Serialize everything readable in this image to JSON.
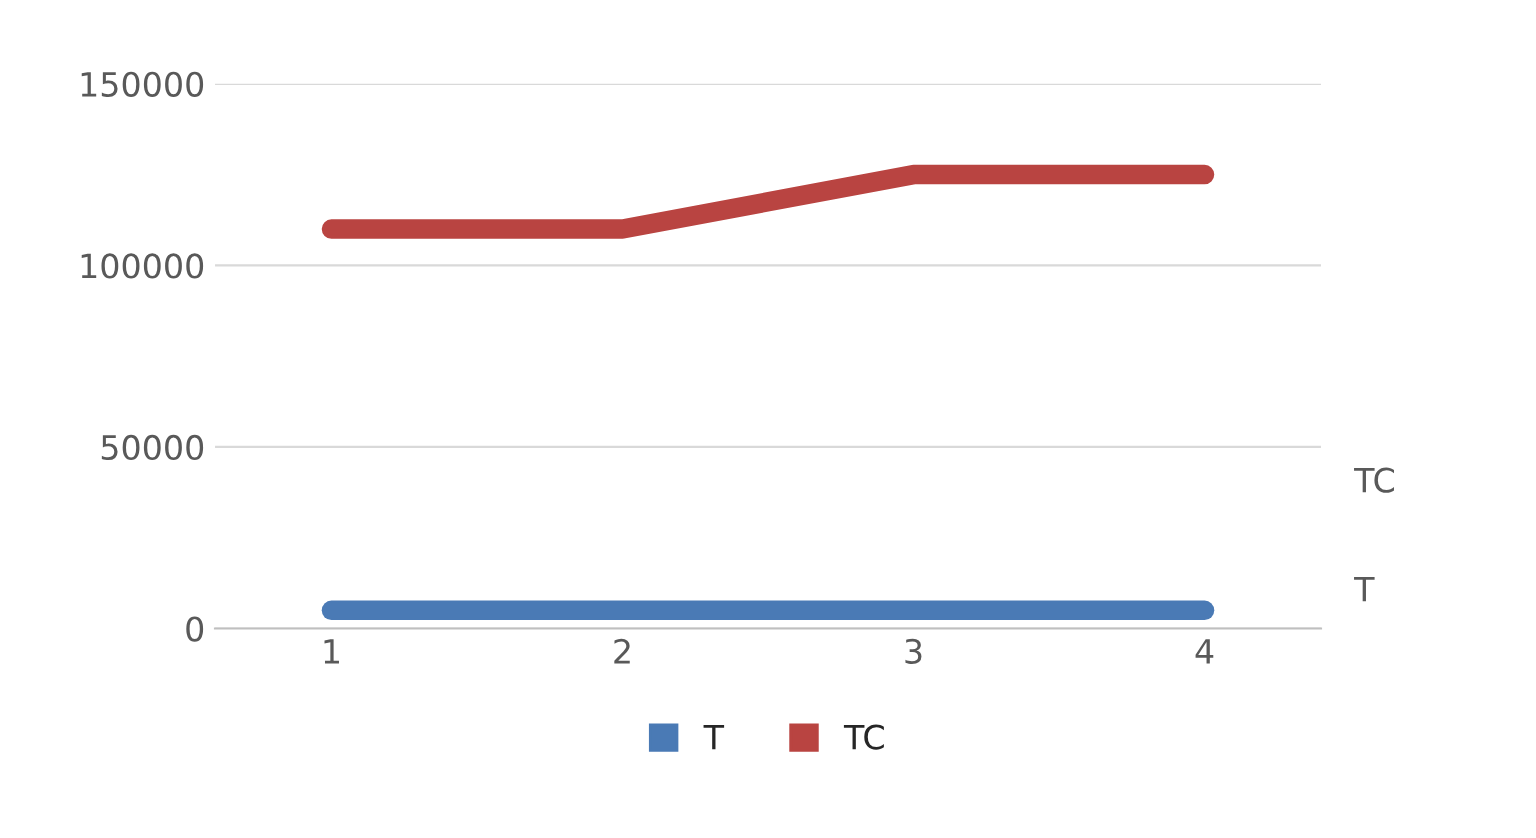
{
  "chart_data": {
    "type": "line",
    "categories": [
      "1",
      "2",
      "3",
      "4"
    ],
    "series": [
      {
        "name": "T",
        "color": "#4a7ab5",
        "values": [
          5000,
          5000,
          5000,
          5000
        ]
      },
      {
        "name": "TC",
        "color": "#b94441",
        "values": [
          110000,
          110000,
          125000,
          125000
        ]
      }
    ],
    "ylim": [
      0,
      150000
    ],
    "yticks": [
      0,
      50000,
      100000,
      150000
    ],
    "grid": "y",
    "legend": "bottom",
    "marker": "none",
    "line_style": "solid",
    "annotations": [
      "TC",
      "T"
    ]
  }
}
